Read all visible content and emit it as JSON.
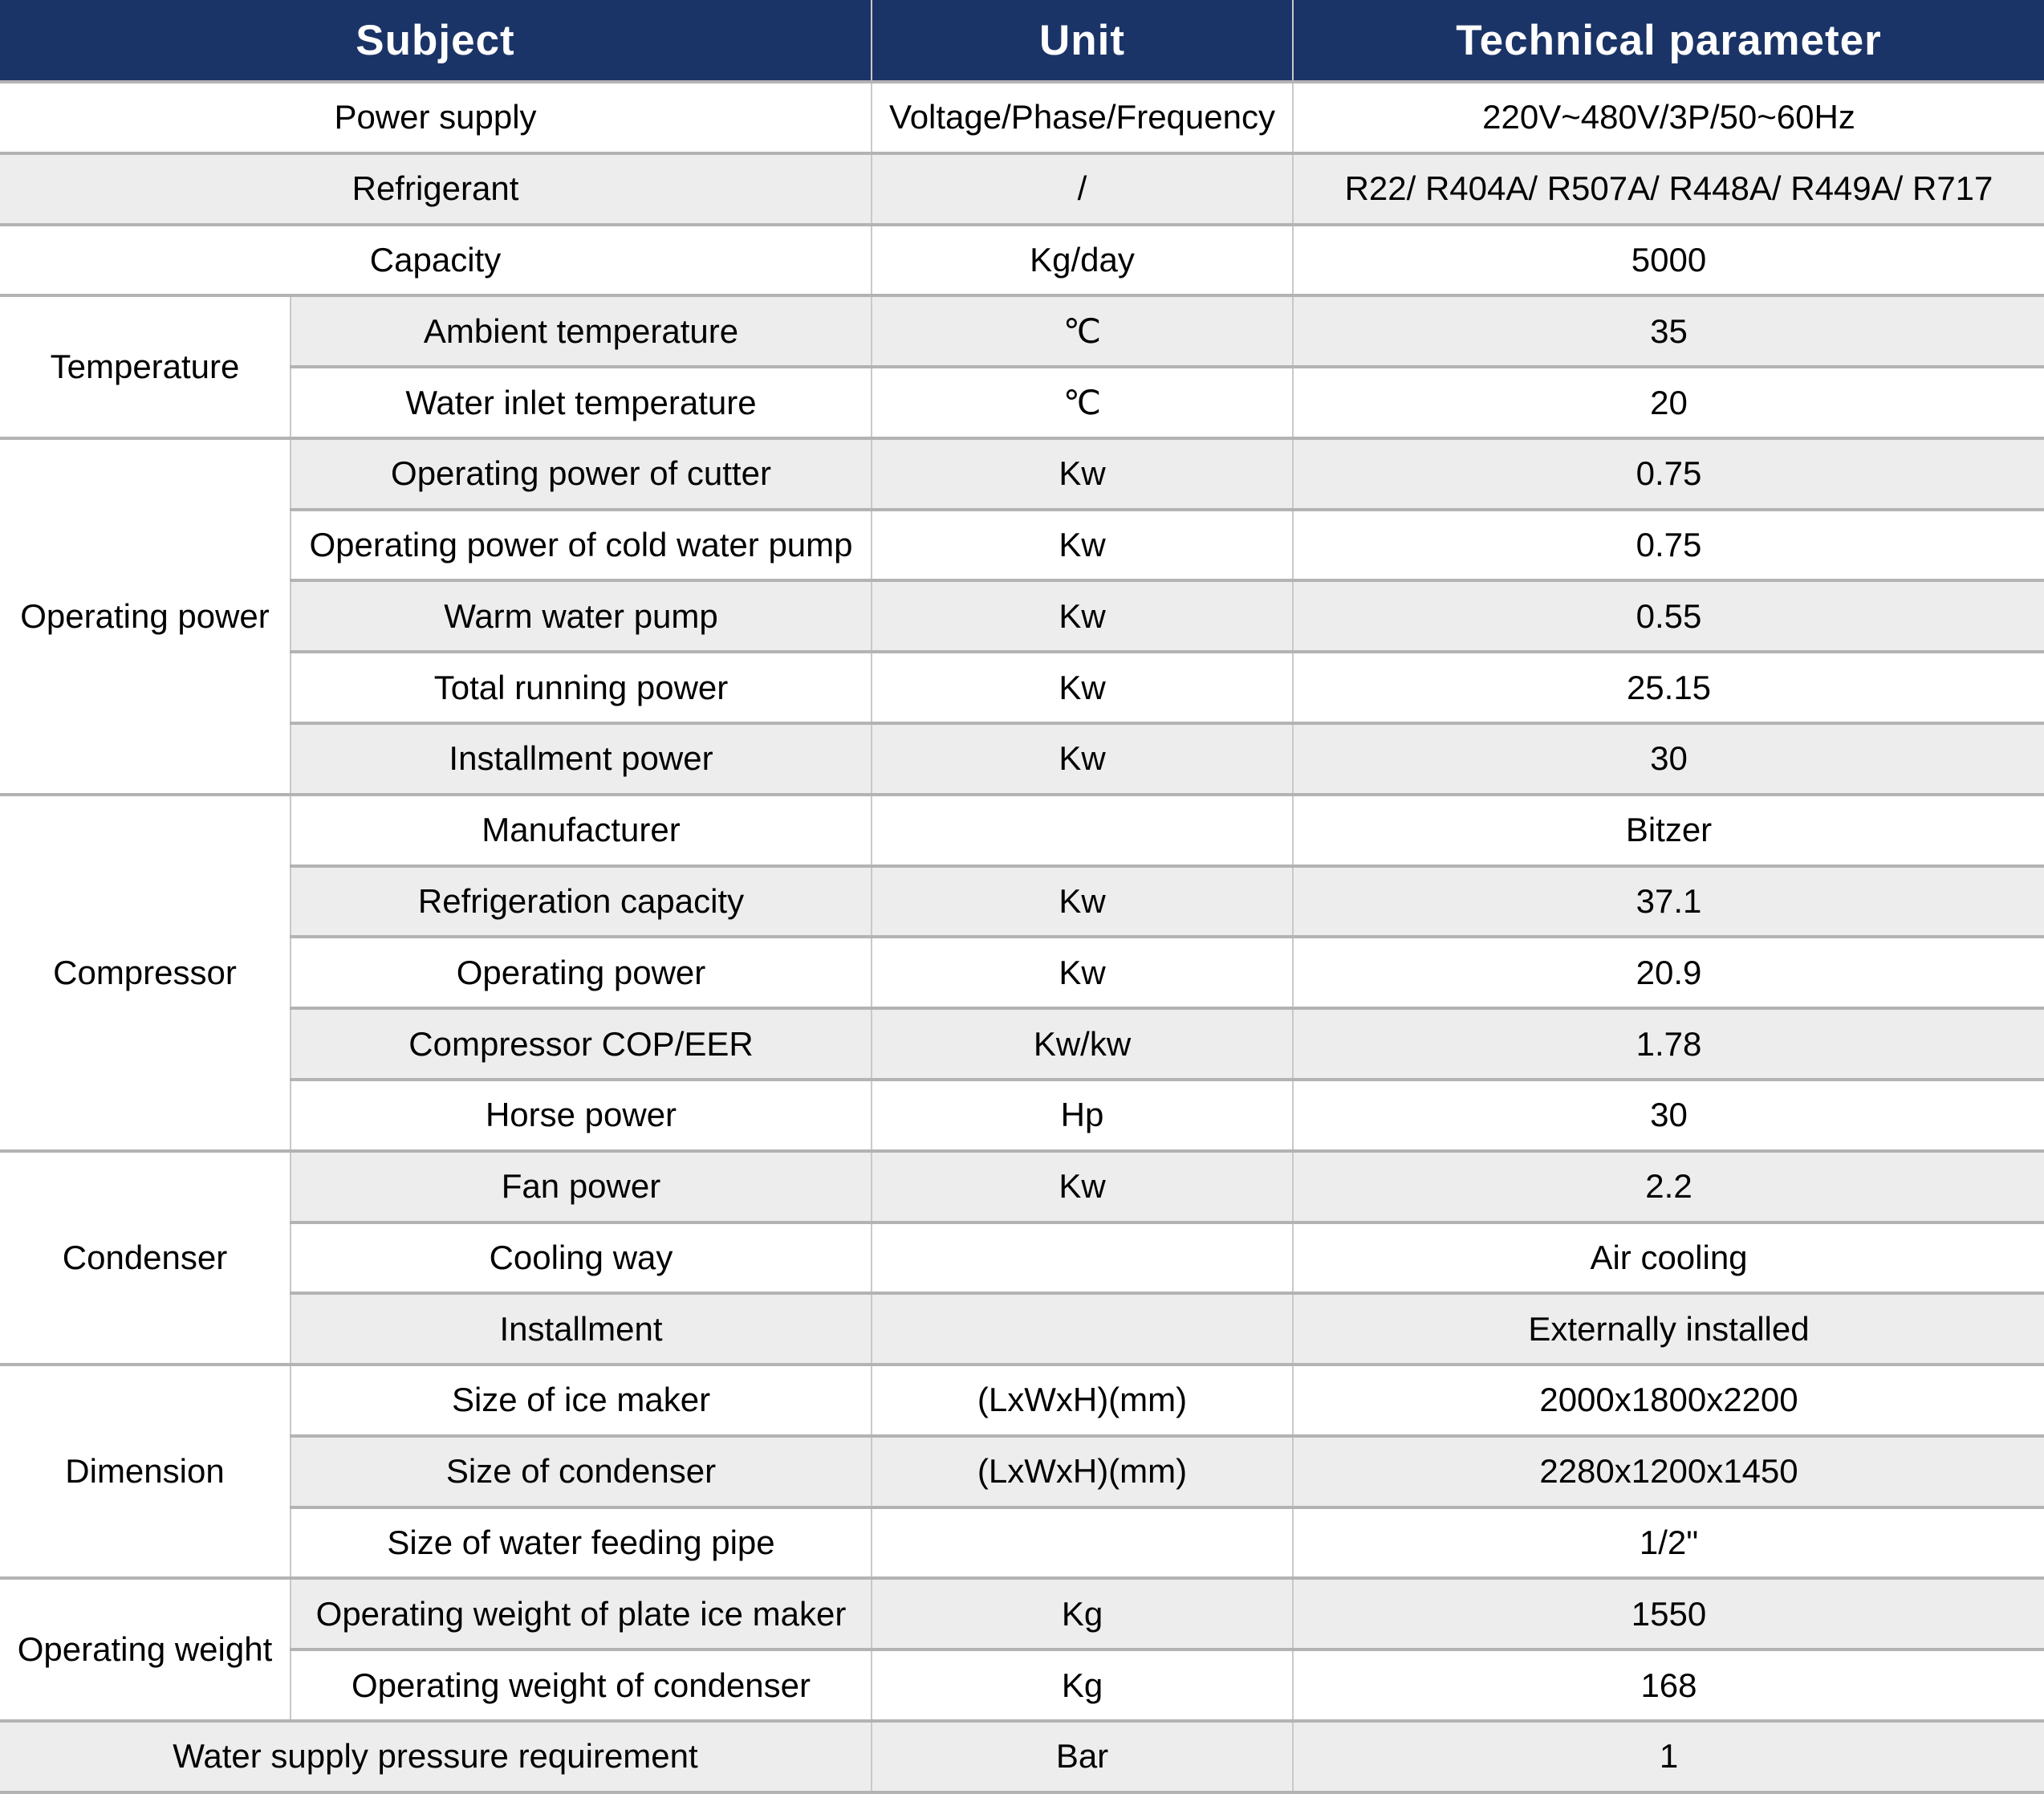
{
  "header": {
    "subject": "Subject",
    "unit": "Unit",
    "parameter": "Technical parameter"
  },
  "rows": [
    {
      "type": "full",
      "subject": "Power supply",
      "unit": "Voltage/Phase/Frequency",
      "value": "220V~480V/3P/50~60Hz"
    },
    {
      "type": "full",
      "subject": "Refrigerant",
      "unit": "/",
      "value": "R22/ R404A/ R507A/ R448A/ R449A/ R717"
    },
    {
      "type": "full",
      "subject": "Capacity",
      "unit": "Kg/day",
      "value": "5000"
    },
    {
      "type": "group",
      "group": "Temperature",
      "span": 2,
      "label": "Ambient temperature",
      "unit": "℃",
      "value": "35"
    },
    {
      "type": "sub",
      "label": "Water inlet temperature",
      "unit": "℃",
      "value": "20"
    },
    {
      "type": "group",
      "group": "Operating power",
      "span": 5,
      "label": "Operating power of cutter",
      "unit": "Kw",
      "value": "0.75"
    },
    {
      "type": "sub",
      "label": "Operating power of cold water pump",
      "unit": "Kw",
      "value": "0.75"
    },
    {
      "type": "sub",
      "label": "Warm water pump",
      "unit": "Kw",
      "value": "0.55"
    },
    {
      "type": "sub",
      "label": "Total running power",
      "unit": "Kw",
      "value": "25.15"
    },
    {
      "type": "sub",
      "label": "Installment power",
      "unit": "Kw",
      "value": "30"
    },
    {
      "type": "group",
      "group": "Compressor",
      "span": 5,
      "label": "Manufacturer",
      "unit": "",
      "value": "Bitzer"
    },
    {
      "type": "sub",
      "label": "Refrigeration capacity",
      "unit": "Kw",
      "value": "37.1"
    },
    {
      "type": "sub",
      "label": "Operating power",
      "unit": "Kw",
      "value": "20.9"
    },
    {
      "type": "sub",
      "label": "Compressor COP/EER",
      "unit": "Kw/kw",
      "value": "1.78"
    },
    {
      "type": "sub",
      "label": "Horse power",
      "unit": "Hp",
      "value": "30"
    },
    {
      "type": "group",
      "group": "Condenser",
      "span": 3,
      "label": "Fan power",
      "unit": "Kw",
      "value": "2.2"
    },
    {
      "type": "sub",
      "label": "Cooling way",
      "unit": "",
      "value": "Air cooling"
    },
    {
      "type": "sub",
      "label": "Installment",
      "unit": "",
      "value": "Externally installed"
    },
    {
      "type": "group",
      "group": "Dimension",
      "span": 3,
      "label": "Size of ice maker",
      "unit": "(LxWxH)(mm)",
      "value": "2000x1800x2200"
    },
    {
      "type": "sub",
      "label": "Size of condenser",
      "unit": "(LxWxH)(mm)",
      "value": "2280x1200x1450"
    },
    {
      "type": "sub",
      "label": "Size of water feeding pipe",
      "unit": "",
      "value": "1/2\""
    },
    {
      "type": "group",
      "group": "Operating weight",
      "span": 2,
      "label": "Operating weight of plate ice maker",
      "unit": "Kg",
      "value": "1550"
    },
    {
      "type": "sub",
      "label": "Operating weight of condenser",
      "unit": "Kg",
      "value": "168"
    },
    {
      "type": "full",
      "subject": "Water supply pressure requirement",
      "unit": "Bar",
      "value": "1"
    }
  ],
  "colors": {
    "header_bg": "#1b3467",
    "header_text": "#ffffff",
    "row_bg": "#ffffff",
    "row_alt_bg": "#ededed",
    "grid_horizontal": "#b3b3b3",
    "grid_vertical": "#c9c9c9"
  }
}
